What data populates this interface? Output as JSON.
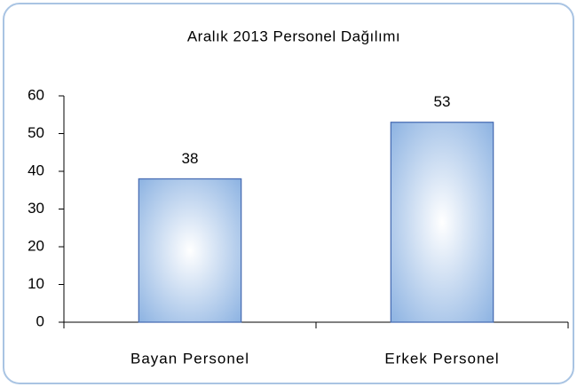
{
  "chart_data": {
    "type": "bar",
    "title": "Aralık 2013 Personel Dağılımı",
    "categories": [
      "Bayan Personel",
      "Erkek Personel"
    ],
    "values": [
      38,
      53
    ],
    "color": "#8db3e2",
    "ylim": [
      0,
      60
    ],
    "yticks": [
      0,
      10,
      20,
      30,
      40,
      50,
      60
    ],
    "grid": false,
    "data_labels": true
  }
}
